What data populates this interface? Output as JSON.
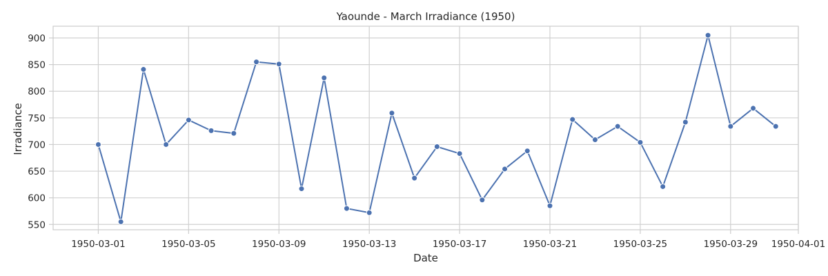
{
  "chart_data": {
    "type": "line",
    "title": "Yaounde - March Irradiance (1950)",
    "xlabel": "Date",
    "ylabel": "Irradiance",
    "grid": true,
    "ylim": [
      540,
      922
    ],
    "xlim": [
      "1950-02-27",
      "1950-04-01"
    ],
    "x_ticks": [
      "1950-03-01",
      "1950-03-05",
      "1950-03-09",
      "1950-03-13",
      "1950-03-17",
      "1950-03-21",
      "1950-03-25",
      "1950-03-29",
      "1950-04-01"
    ],
    "y_ticks": [
      550,
      600,
      650,
      700,
      750,
      800,
      850,
      900
    ],
    "series": [
      {
        "color": "#4c72b0",
        "x": [
          "1950-03-01",
          "1950-03-02",
          "1950-03-03",
          "1950-03-04",
          "1950-03-05",
          "1950-03-06",
          "1950-03-07",
          "1950-03-08",
          "1950-03-09",
          "1950-03-10",
          "1950-03-11",
          "1950-03-12",
          "1950-03-13",
          "1950-03-14",
          "1950-03-15",
          "1950-03-16",
          "1950-03-17",
          "1950-03-18",
          "1950-03-19",
          "1950-03-20",
          "1950-03-21",
          "1950-03-22",
          "1950-03-23",
          "1950-03-24",
          "1950-03-25",
          "1950-03-26",
          "1950-03-27",
          "1950-03-28",
          "1950-03-29",
          "1950-03-30",
          "1950-03-31"
        ],
        "values": [
          700,
          555,
          841,
          700,
          746,
          726,
          721,
          855,
          851,
          617,
          825,
          580,
          572,
          759,
          637,
          696,
          683,
          596,
          654,
          688,
          585,
          747,
          709,
          734,
          704,
          621,
          742,
          905,
          734,
          768,
          734
        ]
      }
    ]
  }
}
